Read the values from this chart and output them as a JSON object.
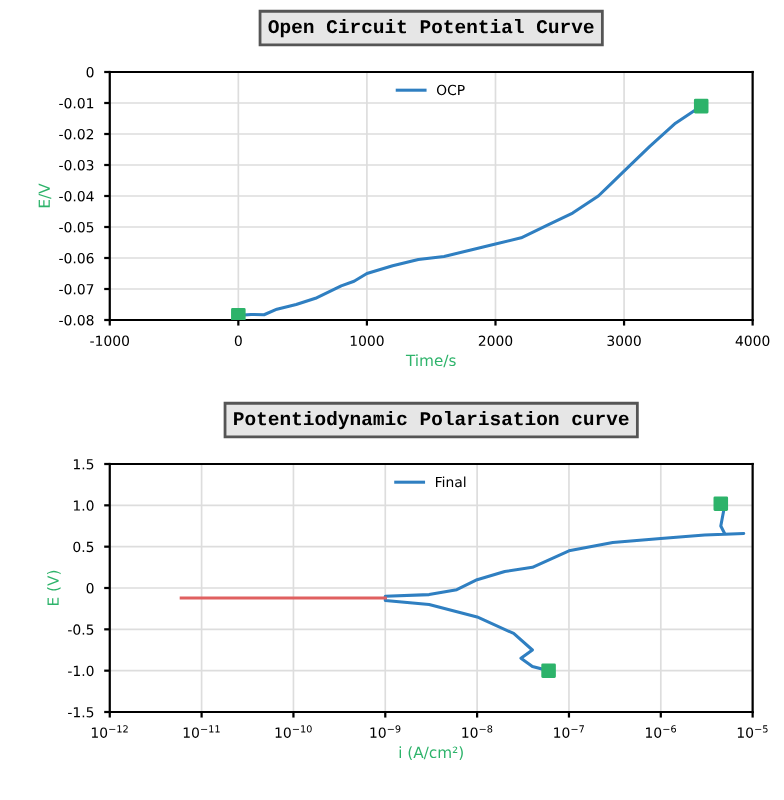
{
  "chart_data": [
    {
      "type": "line",
      "title": "Open Circuit Potential Curve",
      "xlabel": "Time/s",
      "ylabel": "E/V",
      "xlim": [
        -1000,
        4000
      ],
      "xticks": [
        -1000,
        0,
        1000,
        2000,
        3000,
        4000
      ],
      "ylim": [
        -0.08,
        0
      ],
      "yticks": [
        -0.08,
        -0.07,
        -0.06,
        -0.05,
        -0.04,
        -0.03,
        -0.02,
        -0.01,
        0
      ],
      "grid": true,
      "legend": "top",
      "series": [
        {
          "name": "OCP",
          "color": "#2f7fc1",
          "x": [
            0,
            100,
            200,
            300,
            450,
            600,
            800,
            900,
            1000,
            1200,
            1400,
            1600,
            1800,
            2000,
            2200,
            2400,
            2600,
            2800,
            2900,
            3000,
            3200,
            3400,
            3600
          ],
          "values": [
            -0.0785,
            -0.0782,
            -0.0783,
            -0.0765,
            -0.075,
            -0.073,
            -0.069,
            -0.0675,
            -0.065,
            -0.0625,
            -0.0605,
            -0.0595,
            -0.0575,
            -0.0555,
            -0.0535,
            -0.0495,
            -0.0455,
            -0.04,
            -0.036,
            -0.032,
            -0.024,
            -0.0165,
            -0.011
          ]
        },
        {
          "type": "scatter",
          "color": "#2db36a",
          "marker": "square",
          "x": [
            0,
            3600
          ],
          "values": [
            -0.0785,
            -0.011
          ]
        }
      ]
    },
    {
      "type": "line",
      "title": "Potentiodynamic Polarisation curve",
      "xlabel": "i (A/cm²)",
      "ylabel": "E (V)",
      "log": "x",
      "xlim": [
        1e-12,
        1e-05
      ],
      "xticks": [
        {
          "value": 1e-12,
          "label": "10$^{−12}$"
        },
        {
          "value": 1e-11,
          "label": "10$^{−11}$"
        },
        {
          "value": 1e-10,
          "label": "10$^{−10}$"
        },
        {
          "value": 1e-09,
          "label": "10$^{−9}$"
        },
        {
          "value": 1e-08,
          "label": "10$^{−8}$"
        },
        {
          "value": 1e-07,
          "label": "10$^{−7}$"
        },
        {
          "value": 1e-06,
          "label": "10$^{−6}$"
        },
        {
          "value": 1e-05,
          "label": "10$^{−5}$"
        }
      ],
      "ylim": [
        -1.5,
        1.5
      ],
      "yticks": [
        -1.5,
        {
          "value": -1,
          "label": "-1.0"
        },
        -0.5,
        0,
        0.5,
        {
          "value": 1,
          "label": "1.0"
        },
        1.5
      ],
      "grid": true,
      "legend": "top",
      "series": [
        {
          "name": "Final",
          "color": "#2f7fc1",
          "x": [
            6e-08,
            4e-08,
            3e-08,
            4e-08,
            2.5e-08,
            1e-08,
            3e-09,
            1e-09,
            1e-09,
            3e-09,
            6e-09,
            1e-08,
            2e-08,
            4e-08,
            1e-07,
            3e-07,
            1e-06,
            3e-06,
            8e-06,
            5e-06,
            4.5e-06,
            5e-06
          ],
          "values": [
            -1.0,
            -0.95,
            -0.85,
            -0.75,
            -0.55,
            -0.35,
            -0.2,
            -0.15,
            -0.1,
            -0.08,
            -0.02,
            0.1,
            0.2,
            0.25,
            0.45,
            0.55,
            0.6,
            0.64,
            0.66,
            0.65,
            0.75,
            1.02
          ]
        },
        {
          "color": "#e06060",
          "x": [
            6e-12,
            1e-11,
            1e-10,
            1e-09
          ],
          "values": [
            -0.12,
            -0.12,
            -0.12,
            -0.12
          ]
        },
        {
          "type": "scatter",
          "color": "#2db36a",
          "marker": "square",
          "x": [
            6e-08,
            4.5e-06
          ],
          "values": [
            -1.0,
            1.02
          ]
        }
      ]
    }
  ]
}
